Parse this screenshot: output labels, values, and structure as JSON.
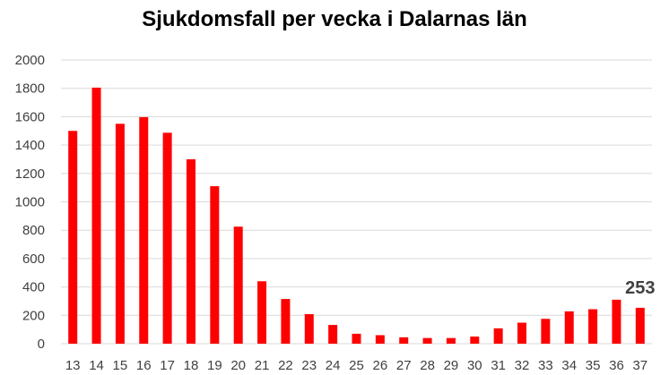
{
  "chart_data": {
    "type": "bar",
    "title": "Sjukdomsfall per vecka i Dalarnas län",
    "xlabel": "",
    "ylabel": "",
    "categories": [
      "13",
      "14",
      "15",
      "16",
      "17",
      "18",
      "19",
      "20",
      "21",
      "22",
      "23",
      "24",
      "25",
      "26",
      "27",
      "28",
      "29",
      "30",
      "31",
      "32",
      "33",
      "34",
      "35",
      "36",
      "37"
    ],
    "values": [
      1500,
      1805,
      1550,
      1597,
      1487,
      1300,
      1110,
      825,
      440,
      315,
      208,
      132,
      70,
      60,
      45,
      40,
      40,
      50,
      108,
      148,
      175,
      228,
      243,
      310,
      253
    ],
    "ylim": [
      0,
      2000
    ],
    "yticks": [
      0,
      200,
      400,
      600,
      800,
      1000,
      1200,
      1400,
      1600,
      1800,
      2000
    ],
    "grid": true,
    "legend": "none",
    "bar_color": "#ff0000",
    "grid_color": "#d9d9d9",
    "annotations": [
      {
        "category": "37",
        "text": "253"
      }
    ]
  }
}
